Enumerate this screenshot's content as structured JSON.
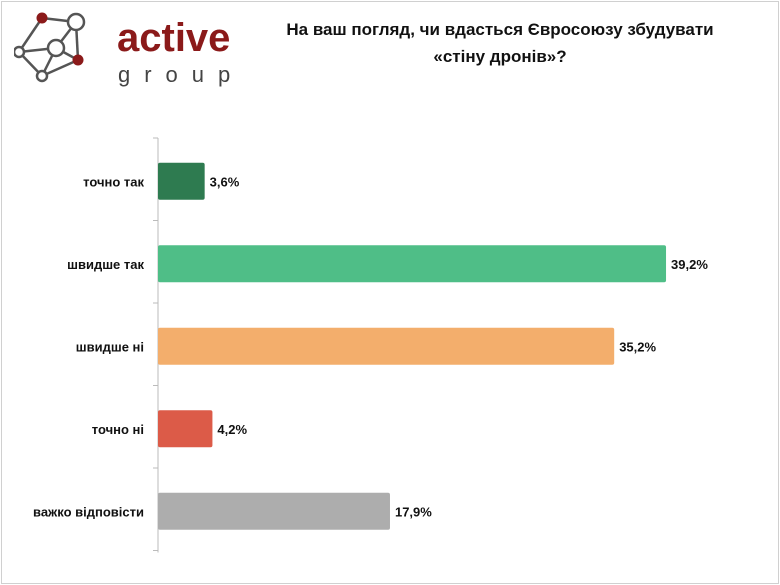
{
  "logo": {
    "word": "active",
    "sub": "group"
  },
  "chart_data": {
    "type": "bar",
    "orientation": "horizontal",
    "title": "На ваш погляд, чи вдасться Євросоюзу збудувати «стіну дронів»?",
    "title_lines": [
      "На ваш погляд, чи вдасться Євросоюзу збудувати",
      "«стіну дронів»?"
    ],
    "categories": [
      "точно так",
      "швидше так",
      "швидше ні",
      "точно ні",
      "важко відповісти"
    ],
    "values": [
      3.6,
      39.2,
      35.2,
      4.2,
      17.9
    ],
    "labels": [
      "3,6%",
      "39,2%",
      "35,2%",
      "4,2%",
      "17,9%"
    ],
    "colors": [
      "#2e7b50",
      "#4fbe87",
      "#f3ae6c",
      "#dc5b48",
      "#adadad"
    ],
    "xlim": [
      0,
      45
    ],
    "grid": false,
    "xlabel": "",
    "ylabel": ""
  }
}
